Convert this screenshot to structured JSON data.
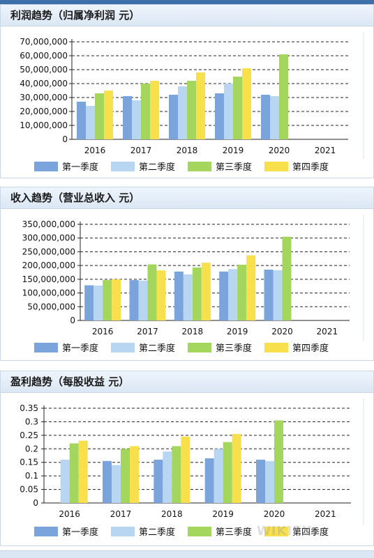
{
  "watermark": "WIKIFX",
  "colors": {
    "q1": "#7ba4dc",
    "q2": "#b8d6f2",
    "q3": "#a4d65e",
    "q4": "#f7e04b"
  },
  "panels": [
    {
      "title": "利润趋势（归属净利润 元）",
      "chart_data": {
        "type": "bar",
        "categories": [
          "2016",
          "2017",
          "2018",
          "2019",
          "2020",
          "2021"
        ],
        "yticks": [
          "0",
          "10,000,000",
          "20,000,000",
          "30,000,000",
          "40,000,000",
          "50,000,000",
          "60,000,000",
          "70,000,000"
        ],
        "ylim": [
          0,
          70000000
        ],
        "grid": true,
        "legend_position": "bottom",
        "series": [
          {
            "name": "第一季度",
            "values": [
              27000000,
              31000000,
              32000000,
              33000000,
              32000000,
              null
            ]
          },
          {
            "name": "第二季度",
            "values": [
              24000000,
              28000000,
              38000000,
              40000000,
              31000000,
              null
            ]
          },
          {
            "name": "第三季度",
            "values": [
              33000000,
              40000000,
              42000000,
              45000000,
              61000000,
              null
            ]
          },
          {
            "name": "第四季度",
            "values": [
              35000000,
              42000000,
              48000000,
              51000000,
              null,
              null
            ]
          }
        ]
      }
    },
    {
      "title": "收入趋势（营业总收入 元）",
      "chart_data": {
        "type": "bar",
        "categories": [
          "2016",
          "2017",
          "2018",
          "2019",
          "2020",
          "2021"
        ],
        "yticks": [
          "0",
          "50,000,000",
          "100,000,000",
          "150,000,000",
          "200,000,000",
          "250,000,000",
          "300,000,000",
          "350,000,000"
        ],
        "ylim": [
          0,
          350000000
        ],
        "grid": true,
        "legend_position": "bottom",
        "series": [
          {
            "name": "第一季度",
            "values": [
              128000000,
              147000000,
              178000000,
              178000000,
              185000000,
              null
            ]
          },
          {
            "name": "第二季度",
            "values": [
              127000000,
              145000000,
              168000000,
              187000000,
              183000000,
              null
            ]
          },
          {
            "name": "第三季度",
            "values": [
              147000000,
              204000000,
              193000000,
              203000000,
              305000000,
              null
            ]
          },
          {
            "name": "第四季度",
            "values": [
              150000000,
              182000000,
              210000000,
              237000000,
              null,
              null
            ]
          }
        ]
      }
    },
    {
      "title": "盈利趋势（每股收益 元）",
      "chart_data": {
        "type": "bar",
        "categories": [
          "2016",
          "2017",
          "2018",
          "2019",
          "2020",
          "2021"
        ],
        "yticks": [
          "0",
          "0.05",
          "0.1",
          "0.15",
          "0.2",
          "0.25",
          "0.3",
          "0.35"
        ],
        "ylim": [
          0,
          0.35
        ],
        "grid": true,
        "legend_position": "bottom",
        "series": [
          {
            "name": "第一季度",
            "values": [
              null,
              0.155,
              0.16,
              0.165,
              0.16,
              null
            ]
          },
          {
            "name": "第二季度",
            "values": [
              0.16,
              0.14,
              0.19,
              0.2,
              0.155,
              null
            ]
          },
          {
            "name": "第三季度",
            "values": [
              0.22,
              0.2,
              0.21,
              0.225,
              0.305,
              null
            ]
          },
          {
            "name": "第四季度",
            "values": [
              0.23,
              0.21,
              0.245,
              0.255,
              null,
              null
            ]
          }
        ]
      }
    }
  ]
}
